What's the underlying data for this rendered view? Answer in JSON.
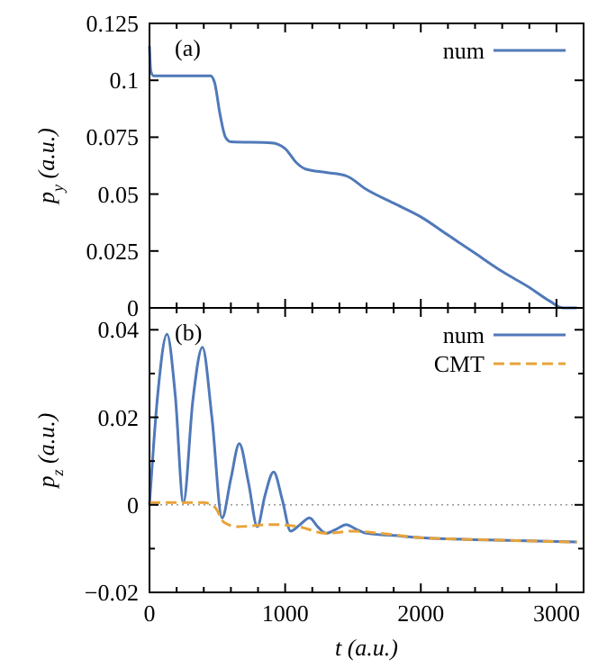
{
  "chart_data": [
    {
      "type": "line",
      "ylabel": "p$_{y}$ (a.u.)",
      "annotations": [
        "(a)"
      ],
      "xlim": [
        0,
        3200
      ],
      "ylim": [
        0,
        0.125
      ],
      "xticks": [
        0,
        {
          "value": 200,
          "label": null
        },
        {
          "value": 400,
          "label": null
        },
        {
          "value": 600,
          "label": null
        },
        {
          "value": 800,
          "label": null
        },
        1000,
        {
          "value": 1200,
          "label": null
        },
        {
          "value": 1400,
          "label": null
        },
        {
          "value": 1600,
          "label": null
        },
        {
          "value": 1800,
          "label": null
        },
        2000,
        {
          "value": 2200,
          "label": null
        },
        {
          "value": 2400,
          "label": null
        },
        {
          "value": 2600,
          "label": null
        },
        {
          "value": 2800,
          "label": null
        },
        3000
      ],
      "yticks": [
        0,
        0.025,
        0.05,
        0.075,
        0.1,
        0.125
      ],
      "tick_labels": "y",
      "legend": "top right",
      "x": [
        0,
        10,
        30,
        450,
        480,
        520,
        560,
        600,
        900,
        1000,
        1080,
        1150,
        1300,
        1450,
        1600,
        1800,
        2000,
        2200,
        2400,
        2600,
        2800,
        2950,
        3050,
        3150
      ],
      "series": [
        {
          "name": "num",
          "color": "#5079b9",
          "line_style": "solid",
          "values": [
            0.115,
            0.104,
            0.102,
            0.102,
            0.099,
            0.085,
            0.075,
            0.073,
            0.0725,
            0.07,
            0.064,
            0.061,
            0.0595,
            0.058,
            0.052,
            0.046,
            0.04,
            0.032,
            0.024,
            0.016,
            0.009,
            0.003,
            0,
            0
          ]
        }
      ]
    },
    {
      "type": "line",
      "xlabel": "t (a.u.)",
      "ylabel": "p$_{z}$ (a.u.)",
      "annotations": [
        "(b)"
      ],
      "xlim": [
        0,
        3200
      ],
      "ylim": [
        -0.02,
        0.045
      ],
      "xticks": [
        0,
        {
          "value": 200,
          "label": null
        },
        {
          "value": 400,
          "label": null
        },
        {
          "value": 600,
          "label": null
        },
        {
          "value": 800,
          "label": null
        },
        1000,
        {
          "value": 1200,
          "label": null
        },
        {
          "value": 1400,
          "label": null
        },
        {
          "value": 1600,
          "label": null
        },
        {
          "value": 1800,
          "label": null
        },
        2000,
        {
          "value": 2200,
          "label": null
        },
        {
          "value": 2400,
          "label": null
        },
        {
          "value": 2600,
          "label": null
        },
        {
          "value": 2800,
          "label": null
        },
        3000
      ],
      "yticks": [
        -0.02,
        {
          "value": -0.01,
          "label": null
        },
        0,
        {
          "value": 0.01,
          "label": null
        },
        0.02,
        {
          "value": 0.03,
          "label": null
        },
        0.04
      ],
      "legend": "top right",
      "ref_lines": [
        {
          "axis": "y",
          "value": 0,
          "label": null,
          "color": "#999999",
          "line_style": "dotted"
        }
      ],
      "series": [
        {
          "name": "num",
          "color": "#5079b9",
          "line_style": "solid",
          "x": [
            0,
            60,
            129,
            190,
            250,
            320,
            390,
            460,
            535,
            600,
            662,
            730,
            795,
            850,
            915,
            980,
            1040,
            1110,
            1180,
            1240,
            1300,
            1380,
            1450,
            1520,
            1600,
            1800,
            2000,
            2500,
            3150
          ],
          "values": [
            0,
            0.025,
            0.039,
            0.025,
            0.0005,
            0.024,
            0.036,
            0.02,
            -0.003,
            0.006,
            0.014,
            0.005,
            -0.005,
            0.002,
            0.0075,
            0.001,
            -0.006,
            -0.0045,
            -0.003,
            -0.005,
            -0.0065,
            -0.0055,
            -0.0045,
            -0.0055,
            -0.0065,
            -0.007,
            -0.0075,
            -0.008,
            -0.0085
          ]
        },
        {
          "name": "CMT",
          "color": "#e8a33a",
          "line_style": "dashed",
          "x": [
            0,
            400,
            480,
            550,
            650,
            900,
            1100,
            1300,
            1500,
            1700,
            2000,
            2500,
            3150
          ],
          "values": [
            0.0005,
            0.0005,
            -0.0005,
            -0.004,
            -0.005,
            -0.0045,
            -0.005,
            -0.0065,
            -0.006,
            -0.0065,
            -0.0075,
            -0.008,
            -0.0085
          ]
        }
      ]
    }
  ]
}
